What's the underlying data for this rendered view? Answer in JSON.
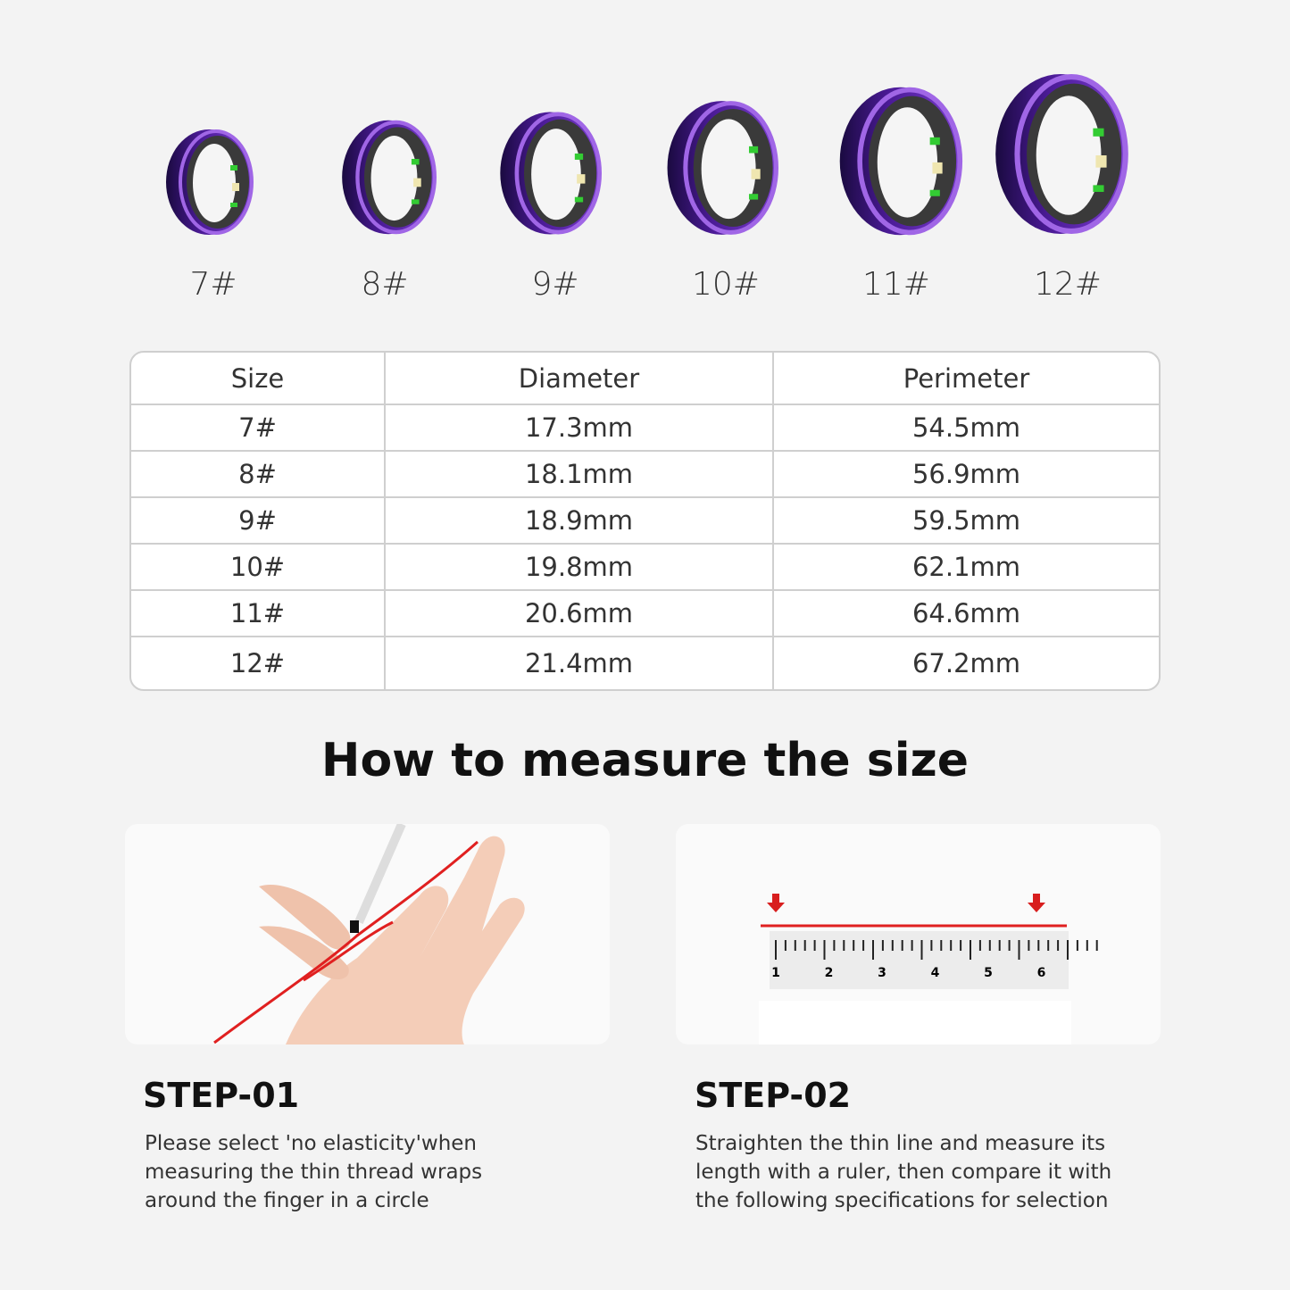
{
  "rings": [
    {
      "label": "7#"
    },
    {
      "label": "8#"
    },
    {
      "label": "9#"
    },
    {
      "label": "10#"
    },
    {
      "label": "11#"
    },
    {
      "label": "12#"
    }
  ],
  "colors": {
    "ring": "#5a1fa8",
    "ring_edge": "#a066e6",
    "thread": "#e02020",
    "background": "#f3f3f3"
  },
  "table": {
    "headers": [
      "Size",
      "Diameter",
      "Perimeter"
    ],
    "rows": [
      [
        "7#",
        "17.3mm",
        "54.5mm"
      ],
      [
        "8#",
        "18.1mm",
        "56.9mm"
      ],
      [
        "9#",
        "18.9mm",
        "59.5mm"
      ],
      [
        "10#",
        "19.8mm",
        "62.1mm"
      ],
      [
        "11#",
        "20.6mm",
        "64.6mm"
      ],
      [
        "12#",
        "21.4mm",
        "67.2mm"
      ]
    ]
  },
  "title": "How to measure the size",
  "steps": [
    {
      "title": "STEP-01",
      "text": "Please select 'no elasticity'when measuring the thin thread wraps around the finger in a circle"
    },
    {
      "title": "STEP-02",
      "text": "Straighten the thin line and measure its length with a ruler, then compare it with the following specifications for selection"
    }
  ],
  "ruler": {
    "labels": [
      "1",
      "2",
      "3",
      "4",
      "5",
      "6"
    ]
  }
}
